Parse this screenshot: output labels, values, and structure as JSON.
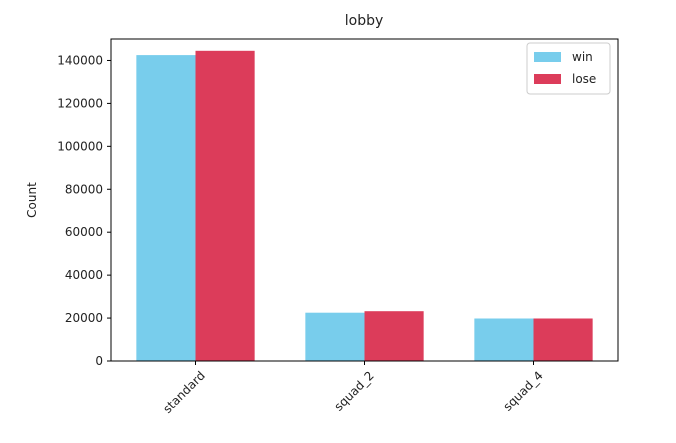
{
  "chart_data": {
    "type": "bar",
    "title": "lobby",
    "xlabel": "",
    "ylabel": "Count",
    "categories": [
      "standard",
      "squad_2",
      "squad_4"
    ],
    "series": [
      {
        "name": "win",
        "color": "#78cdec",
        "values": [
          142500,
          22500,
          19800
        ]
      },
      {
        "name": "lose",
        "color": "#dc3c5a",
        "values": [
          144500,
          23200,
          19800
        ]
      }
    ],
    "ylim": [
      0,
      150000
    ],
    "yticks": [
      0,
      20000,
      40000,
      60000,
      80000,
      100000,
      120000,
      140000
    ],
    "grid": false,
    "legend_position": "top-right"
  }
}
